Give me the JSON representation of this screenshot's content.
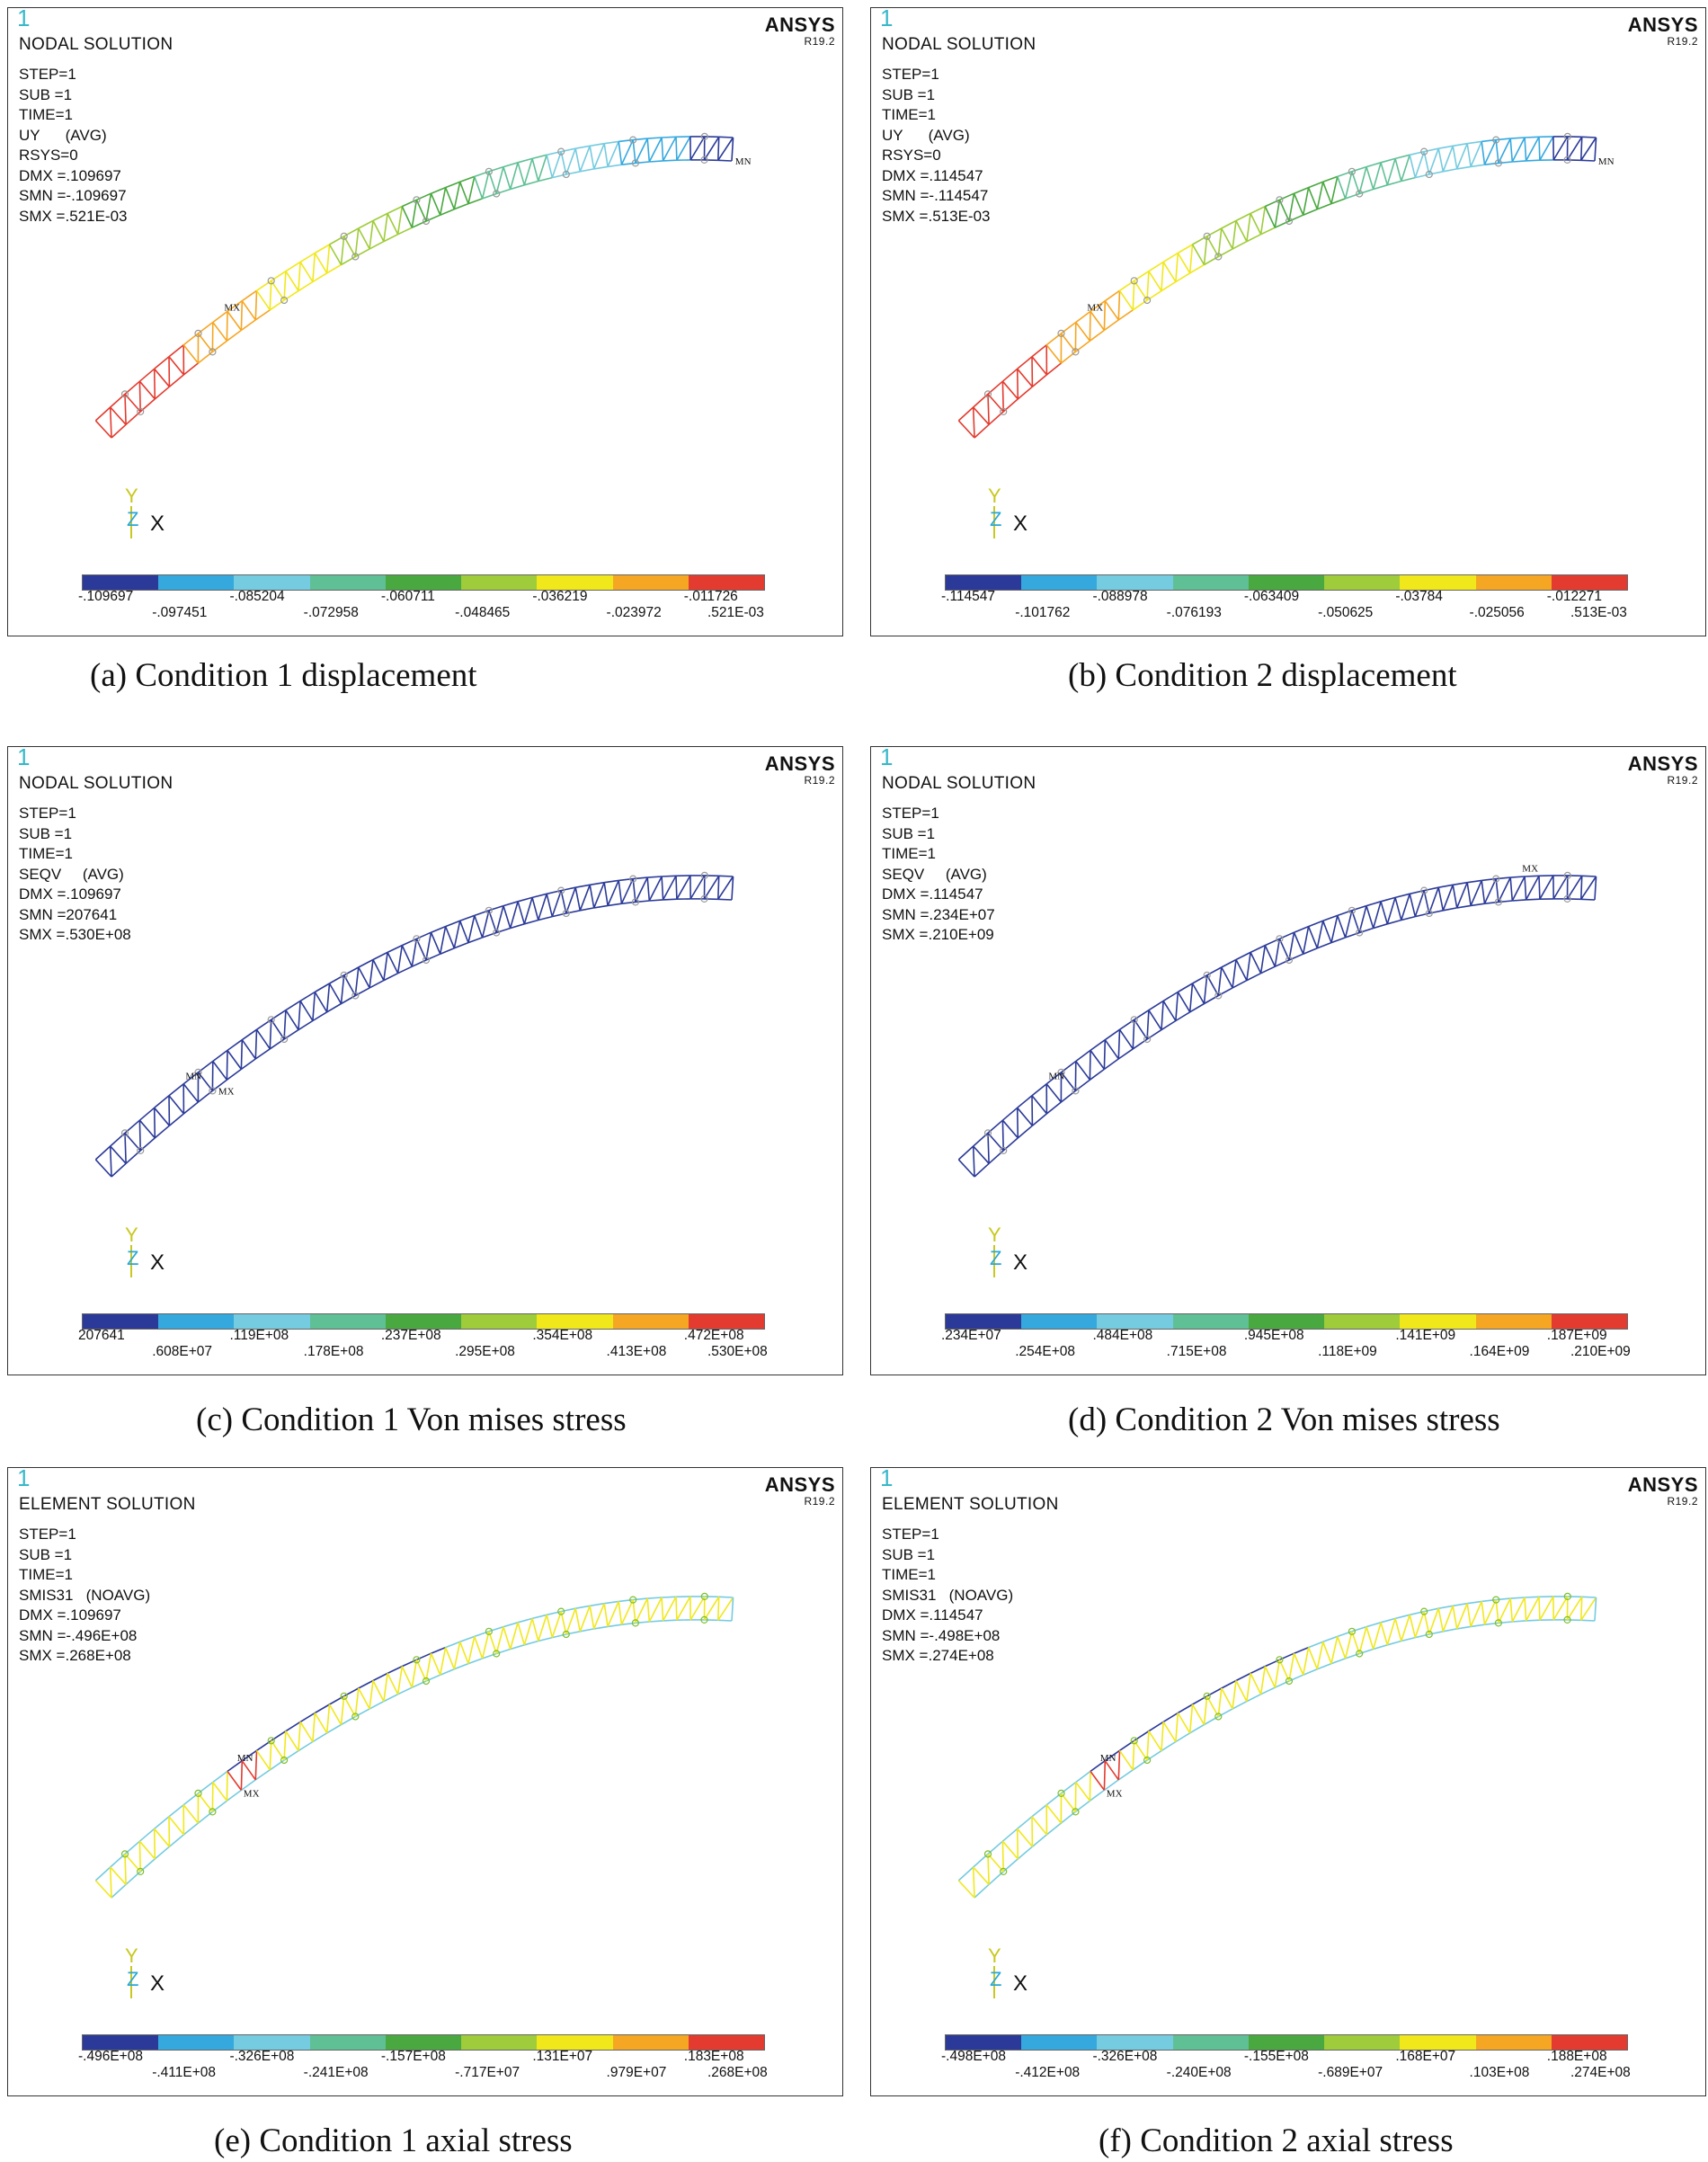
{
  "colormap": [
    "#2b3a98",
    "#35a8de",
    "#75cbe0",
    "#5fc095",
    "#49a83f",
    "#9fcc3a",
    "#f1e81c",
    "#f5a623",
    "#e33b2f"
  ],
  "panels": [
    {
      "version": "1",
      "title": "NODAL SOLUTION",
      "info": [
        "STEP=1",
        "SUB =1",
        "TIME=1",
        "UY      (AVG)",
        "RSYS=0",
        "DMX =.109697",
        "SMN =-.109697",
        "SMX =.521E-03"
      ],
      "brand": "ANSYS",
      "release": "R19.2",
      "markers": [
        "MX",
        "MN"
      ],
      "axes": {
        "y": "Y",
        "z": "Z",
        "x": "X"
      },
      "legend_top": [
        "-.109697",
        "-.085204",
        "-.060711",
        "-.036219",
        "-.011726"
      ],
      "legend_bottom": [
        "-.097451",
        "-.072958",
        "-.048465",
        "-.023972",
        ".521E-03"
      ],
      "caption": "(a) Condition 1 displacement"
    },
    {
      "version": "1",
      "title": "NODAL SOLUTION",
      "info": [
        "STEP=1",
        "SUB =1",
        "TIME=1",
        "UY      (AVG)",
        "RSYS=0",
        "DMX =.114547",
        "SMN =-.114547",
        "SMX =.513E-03"
      ],
      "brand": "ANSYS",
      "release": "R19.2",
      "markers": [
        "MX",
        "MN"
      ],
      "axes": {
        "y": "Y",
        "z": "Z",
        "x": "X"
      },
      "legend_top": [
        "-.114547",
        "-.088978",
        "-.063409",
        "-.03784",
        "-.012271"
      ],
      "legend_bottom": [
        "-.101762",
        "-.076193",
        "-.050625",
        "-.025056",
        ".513E-03"
      ],
      "caption": "(b)  Condition 2 displacement"
    },
    {
      "version": "1",
      "title": "NODAL SOLUTION",
      "info": [
        "STEP=1",
        "SUB =1",
        "TIME=1",
        "SEQV     (AVG)",
        "DMX =.109697",
        "SMN =207641",
        "SMX =.530E+08"
      ],
      "brand": "ANSYS",
      "release": "R19.2",
      "markers": [
        "MN",
        "MX"
      ],
      "axes": {
        "y": "Y",
        "z": "Z",
        "x": "X"
      },
      "legend_top": [
        "207641",
        ".119E+08",
        ".237E+08",
        ".354E+08",
        ".472E+08"
      ],
      "legend_bottom": [
        ".608E+07",
        ".178E+08",
        ".295E+08",
        ".413E+08",
        ".530E+08"
      ],
      "caption": "(c) Condition 1 Von mises stress"
    },
    {
      "version": "1",
      "title": "NODAL SOLUTION",
      "info": [
        "STEP=1",
        "SUB =1",
        "TIME=1",
        "SEQV     (AVG)",
        "DMX =.114547",
        "SMN =.234E+07",
        "SMX =.210E+09"
      ],
      "brand": "ANSYS",
      "release": "R19.2",
      "markers": [
        "MN",
        "MX"
      ],
      "axes": {
        "y": "Y",
        "z": "Z",
        "x": "X"
      },
      "legend_top": [
        ".234E+07",
        ".484E+08",
        ".945E+08",
        ".141E+09",
        ".187E+09"
      ],
      "legend_bottom": [
        ".254E+08",
        ".715E+08",
        ".118E+09",
        ".164E+09",
        ".210E+09"
      ],
      "caption": "(d) Condition 2 Von mises stress"
    },
    {
      "version": "1",
      "title": "ELEMENT SOLUTION",
      "info": [
        "STEP=1",
        "SUB =1",
        "TIME=1",
        "SMIS31   (NOAVG)",
        "DMX =.109697",
        "SMN =-.496E+08",
        "SMX =.268E+08"
      ],
      "brand": "ANSYS",
      "release": "R19.2",
      "markers": [
        "MN",
        "MX"
      ],
      "axes": {
        "y": "Y",
        "z": "Z",
        "x": "X"
      },
      "legend_top": [
        "-.496E+08",
        "-.326E+08",
        "-.157E+08",
        ".131E+07",
        ".183E+08"
      ],
      "legend_bottom": [
        "-.411E+08",
        "-.241E+08",
        "-.717E+07",
        ".979E+07",
        ".268E+08"
      ],
      "caption": "(e) Condition 1 axial stress"
    },
    {
      "version": "1",
      "title": "ELEMENT SOLUTION",
      "info": [
        "STEP=1",
        "SUB =1",
        "TIME=1",
        "SMIS31   (NOAVG)",
        "DMX =.114547",
        "SMN =-.498E+08",
        "SMX =.274E+08"
      ],
      "brand": "ANSYS",
      "release": "R19.2",
      "markers": [
        "MN",
        "MX"
      ],
      "axes": {
        "y": "Y",
        "z": "Z",
        "x": "X"
      },
      "legend_top": [
        "-.498E+08",
        "-.326E+08",
        "-.155E+08",
        ".168E+07",
        ".188E+08"
      ],
      "legend_bottom": [
        "-.412E+08",
        "-.240E+08",
        "-.689E+07",
        ".103E+08",
        ".274E+08"
      ],
      "caption": "(f) Condition 2 axial stress"
    }
  ]
}
